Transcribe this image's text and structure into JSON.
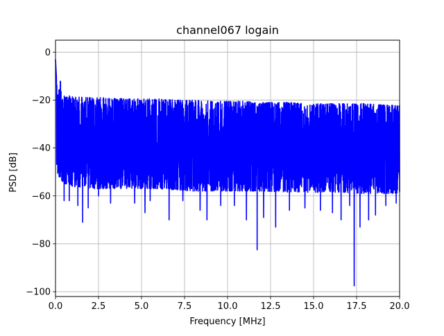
{
  "chart_data": {
    "type": "line",
    "title": "channel067 logain",
    "xlabel": "Frequency [MHz]",
    "ylabel": "PSD [dB]",
    "xlim": [
      0,
      20
    ],
    "ylim": [
      -102,
      5
    ],
    "xticks": [
      0,
      2.5,
      5,
      7.5,
      10,
      12.5,
      15,
      17.5,
      20
    ],
    "xtick_labels": [
      "0.0",
      "2.5",
      "5.0",
      "7.5",
      "10.0",
      "12.5",
      "15.0",
      "17.5",
      "20.0"
    ],
    "yticks": [
      0,
      -20,
      -40,
      -60,
      -80,
      -100
    ],
    "ytick_labels": [
      "0",
      "−20",
      "−40",
      "−60",
      "−80",
      "−100"
    ],
    "grid": true,
    "series_color": "#0000ff",
    "upper_envelope": {
      "x": [
        0,
        0.05,
        0.1,
        0.2,
        0.3,
        0.4,
        0.6,
        1,
        2,
        3,
        4,
        5,
        6,
        7,
        8,
        9,
        10,
        11,
        12,
        13,
        14,
        15,
        16,
        17,
        18,
        19,
        20
      ],
      "y": [
        -3,
        -10,
        -16,
        -14,
        -11,
        -17,
        -18,
        -18.5,
        -19,
        -19,
        -19.5,
        -19.5,
        -19.5,
        -20,
        -20,
        -20.5,
        -20.5,
        -20.5,
        -21,
        -21,
        -21,
        -21.5,
        -21.5,
        -21.5,
        -21.5,
        -22,
        -22
      ]
    },
    "lower_envelope": {
      "x": [
        0,
        0.2,
        0.5,
        1,
        2,
        4,
        6,
        8,
        10,
        12,
        14,
        16,
        18,
        20
      ],
      "y": [
        -55,
        -52,
        -55,
        -56,
        -57,
        -57,
        -57,
        -58,
        -58,
        -58,
        -58.5,
        -58.5,
        -59,
        -59
      ]
    },
    "dips": {
      "x": [
        0.5,
        0.8,
        1.3,
        1.58,
        1.9,
        2.5,
        3.2,
        4.6,
        5.2,
        5.5,
        6.6,
        7.4,
        8.4,
        8.8,
        9.6,
        10.4,
        11.1,
        11.72,
        12.1,
        12.8,
        13.6,
        14.5,
        15.4,
        16.1,
        16.6,
        17.1,
        17.36,
        17.7,
        18.2,
        18.6,
        19.2,
        19.8
      ],
      "y": [
        -62,
        -62,
        -64,
        -71,
        -65,
        -60,
        -63,
        -63,
        -67,
        -62,
        -70,
        -62,
        -66,
        -70,
        -64,
        -64,
        -70,
        -82.5,
        -69,
        -73,
        -66,
        -65,
        -66,
        -67,
        -70,
        -64,
        -97.5,
        -73,
        -70,
        -68,
        -64,
        -63
      ]
    }
  }
}
